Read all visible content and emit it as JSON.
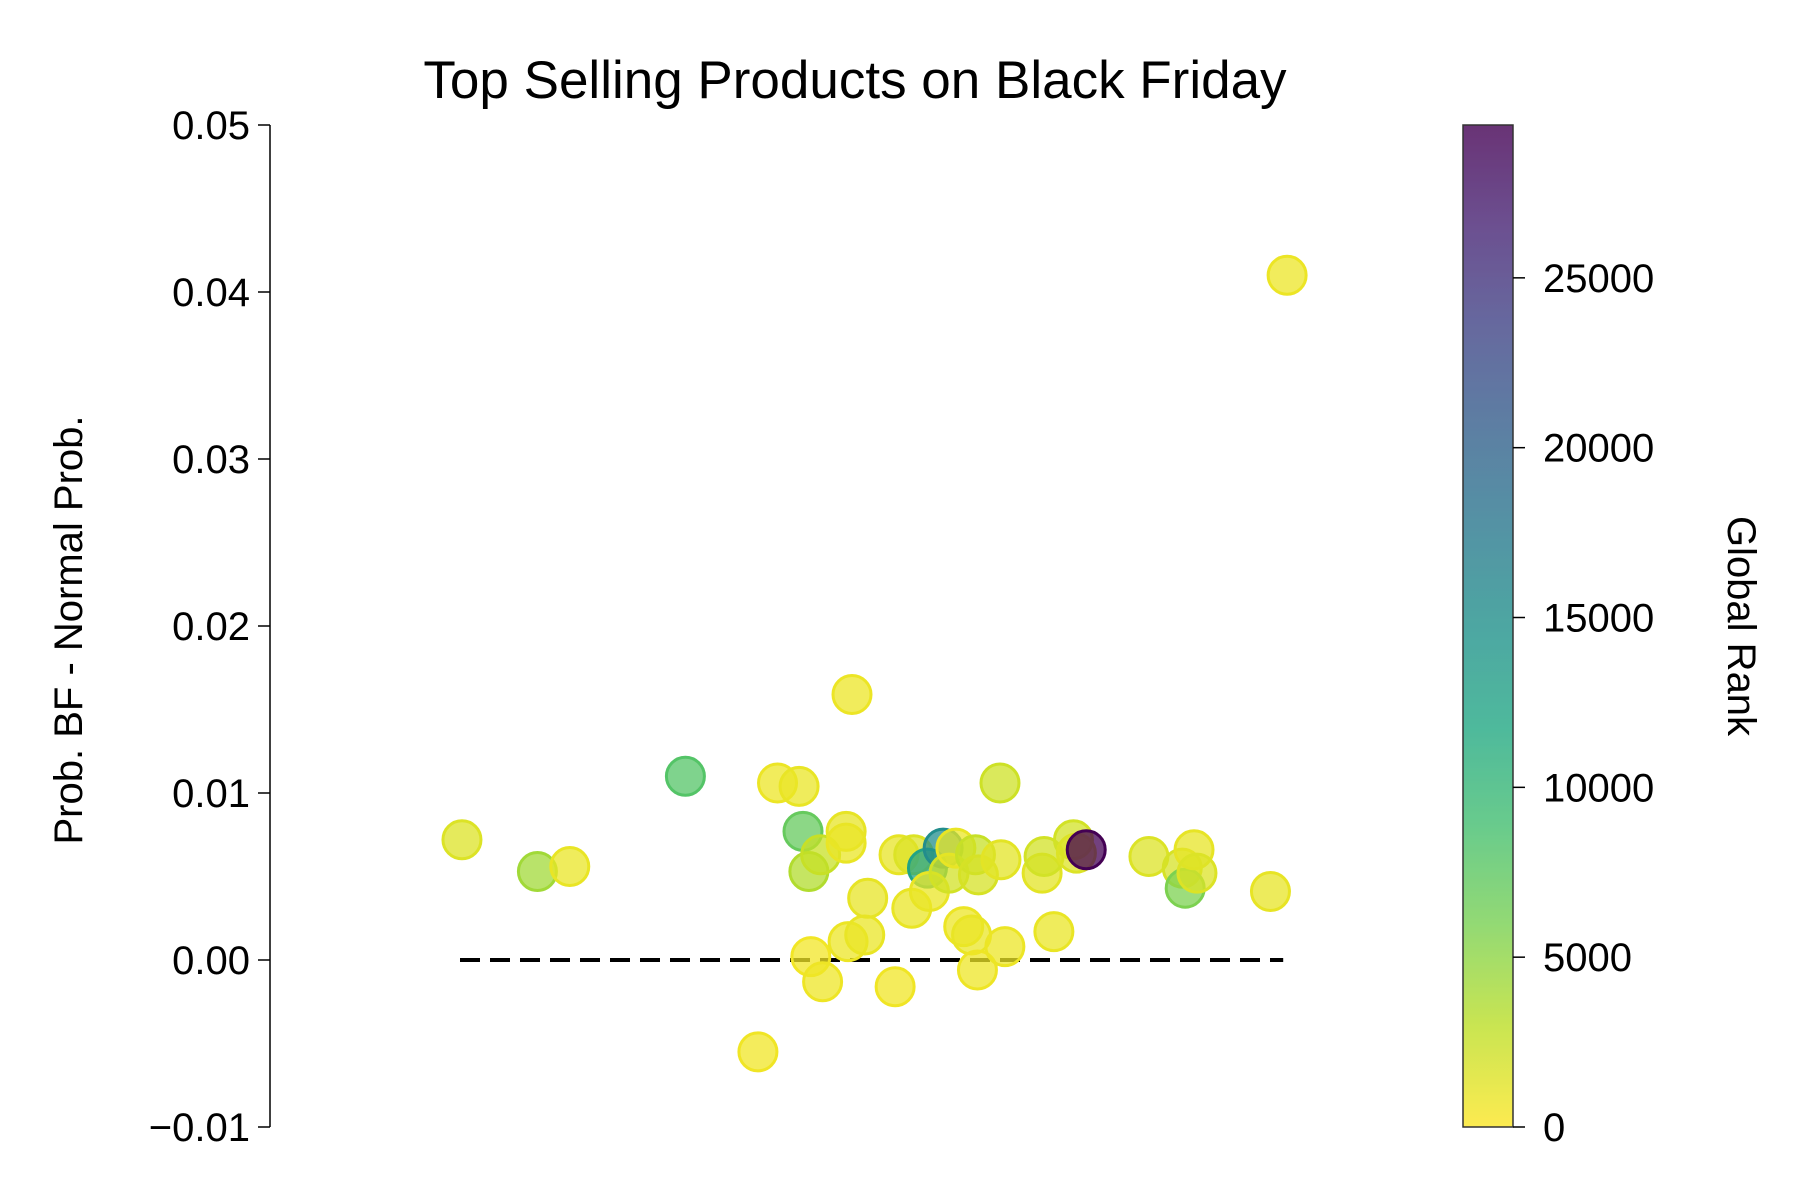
{
  "chart_data": {
    "type": "scatter",
    "title": "Top Selling Products on Black Friday",
    "xlabel": "",
    "ylabel": "Prob. BF - Normal Prob.",
    "ylim": [
      -0.01,
      0.05
    ],
    "xlim": [
      0,
      100
    ],
    "yticks": [
      -0.01,
      0.0,
      0.01,
      0.02,
      0.03,
      0.04,
      0.05
    ],
    "ytick_labels": [
      "−0.01",
      "0.00",
      "0.01",
      "0.02",
      "0.03",
      "0.04",
      "0.05"
    ],
    "grid": false,
    "reference_line": {
      "y": 0.0,
      "x_from": 10,
      "x_to": 94,
      "style": "dashed",
      "color": "#000000"
    },
    "colorbar": {
      "label": "Global Rank",
      "range": [
        0,
        29500
      ],
      "ticks": [
        0,
        5000,
        10000,
        15000,
        20000,
        25000
      ],
      "tick_labels": [
        "0",
        "5000",
        "10000",
        "15000",
        "20000",
        "25000"
      ],
      "colormap": "viridis_r"
    },
    "points": [
      {
        "x": 10.2,
        "y": 0.0072,
        "rank": 1500
      },
      {
        "x": 17.9,
        "y": 0.0053,
        "rank": 4200
      },
      {
        "x": 21.2,
        "y": 0.0056,
        "rank": 900
      },
      {
        "x": 33.0,
        "y": 0.011,
        "rank": 8000
      },
      {
        "x": 40.4,
        "y": -0.0055,
        "rank": 600
      },
      {
        "x": 42.4,
        "y": 0.0106,
        "rank": 800
      },
      {
        "x": 44.6,
        "y": 0.0104,
        "rank": 900
      },
      {
        "x": 45.0,
        "y": 0.0077,
        "rank": 7000
      },
      {
        "x": 45.6,
        "y": 0.0053,
        "rank": 3500
      },
      {
        "x": 45.8,
        "y": 0.0002,
        "rank": 500
      },
      {
        "x": 46.8,
        "y": 0.0063,
        "rank": 2500
      },
      {
        "x": 47.0,
        "y": -0.0013,
        "rank": 700
      },
      {
        "x": 49.4,
        "y": 0.0077,
        "rank": 1000
      },
      {
        "x": 49.4,
        "y": 0.007,
        "rank": 900
      },
      {
        "x": 49.6,
        "y": 0.0011,
        "rank": 800
      },
      {
        "x": 50.0,
        "y": 0.0159,
        "rank": 800
      },
      {
        "x": 51.3,
        "y": 0.0015,
        "rank": 900
      },
      {
        "x": 51.6,
        "y": 0.0037,
        "rank": 1000
      },
      {
        "x": 54.4,
        "y": -0.0016,
        "rank": 600
      },
      {
        "x": 54.8,
        "y": 0.0063,
        "rank": 1000
      },
      {
        "x": 56.1,
        "y": 0.0031,
        "rank": 900
      },
      {
        "x": 56.3,
        "y": 0.0063,
        "rank": 1500
      },
      {
        "x": 57.7,
        "y": 0.0055,
        "rank": 12500
      },
      {
        "x": 57.9,
        "y": 0.0041,
        "rank": 900
      },
      {
        "x": 59.3,
        "y": 0.0067,
        "rank": 15200
      },
      {
        "x": 59.9,
        "y": 0.0052,
        "rank": 2000
      },
      {
        "x": 60.6,
        "y": 0.0067,
        "rank": 900
      },
      {
        "x": 61.4,
        "y": 0.002,
        "rank": 800
      },
      {
        "x": 62.2,
        "y": 0.0015,
        "rank": 900
      },
      {
        "x": 62.6,
        "y": 0.0063,
        "rank": 2500
      },
      {
        "x": 62.8,
        "y": -0.0006,
        "rank": 700
      },
      {
        "x": 62.9,
        "y": 0.0051,
        "rank": 1800
      },
      {
        "x": 65.1,
        "y": 0.0106,
        "rank": 2200
      },
      {
        "x": 65.2,
        "y": 0.006,
        "rank": 1200
      },
      {
        "x": 65.6,
        "y": 0.0008,
        "rank": 800
      },
      {
        "x": 69.4,
        "y": 0.0052,
        "rank": 1200
      },
      {
        "x": 69.6,
        "y": 0.0062,
        "rank": 2000
      },
      {
        "x": 70.6,
        "y": 0.0017,
        "rank": 900
      },
      {
        "x": 72.6,
        "y": 0.0072,
        "rank": 2000
      },
      {
        "x": 72.9,
        "y": 0.0064,
        "rank": 1500
      },
      {
        "x": 73.9,
        "y": 0.0066,
        "rank": 29500
      },
      {
        "x": 80.3,
        "y": 0.0062,
        "rank": 1500
      },
      {
        "x": 83.7,
        "y": 0.0055,
        "rank": 1800
      },
      {
        "x": 84.0,
        "y": 0.0043,
        "rank": 5800
      },
      {
        "x": 84.9,
        "y": 0.0066,
        "rank": 1000
      },
      {
        "x": 85.2,
        "y": 0.0052,
        "rank": 1500
      },
      {
        "x": 92.7,
        "y": 0.0041,
        "rank": 1000
      },
      {
        "x": 94.4,
        "y": 0.041,
        "rank": 800
      }
    ]
  }
}
